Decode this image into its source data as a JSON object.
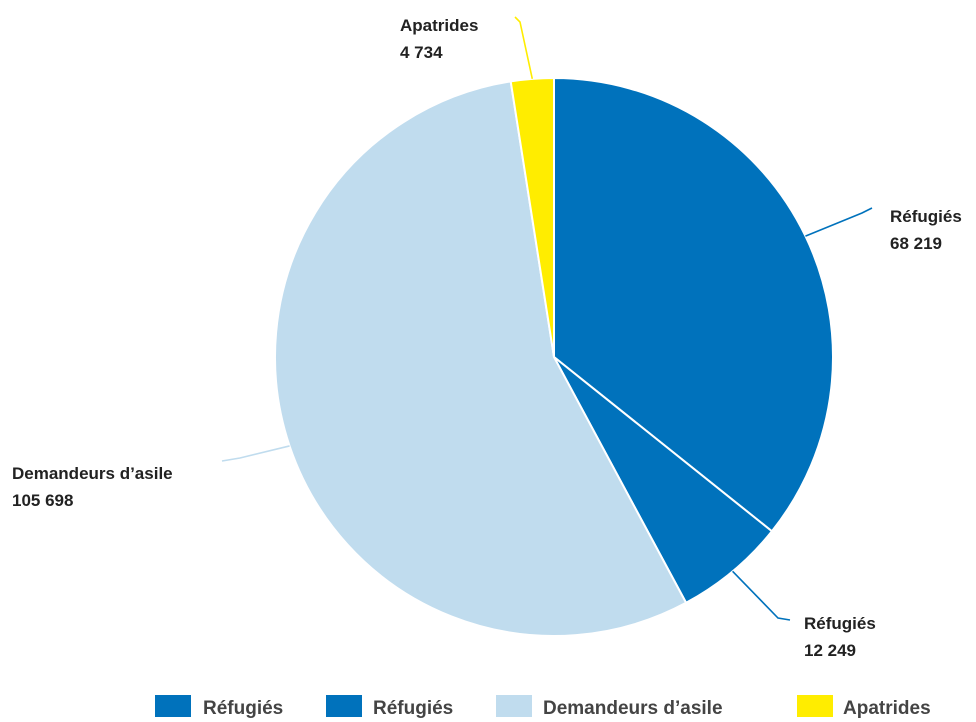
{
  "chart_data": {
    "type": "pie",
    "series": [
      {
        "label": "Réfugiés",
        "value": 68219,
        "display": "68 219",
        "color": "#0072bc"
      },
      {
        "label": "Réfugiés",
        "value": 12249,
        "display": "12 249",
        "color": "#0072bc"
      },
      {
        "label": "Demandeurs d’asile",
        "value": 105698,
        "display": "105 698",
        "color": "#c0dcee"
      },
      {
        "label": "Apatrides",
        "value": 4734,
        "display": "4 734",
        "color": "#ffed00"
      }
    ],
    "legend": {
      "position": "bottom",
      "entries": [
        {
          "label": "Réfugiés",
          "color": "#0072bc"
        },
        {
          "label": "Réfugiés",
          "color": "#0072bc"
        },
        {
          "label": "Demandeurs d’asile",
          "color": "#c0dcee"
        },
        {
          "label": "Apatrides",
          "color": "#ffed00"
        }
      ]
    }
  }
}
